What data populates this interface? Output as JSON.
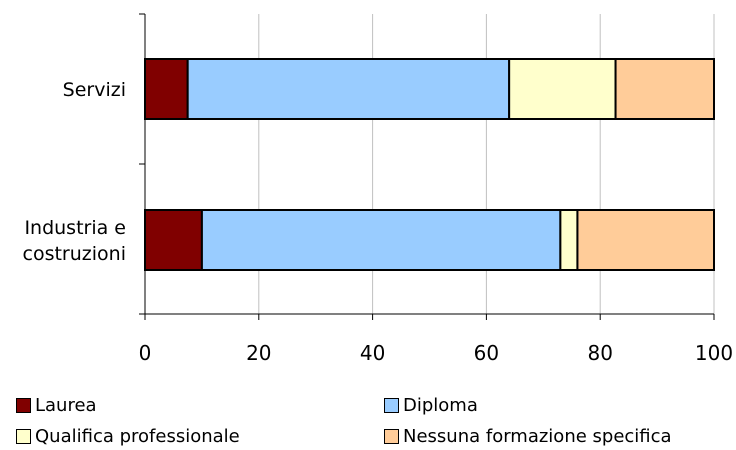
{
  "chart_data": {
    "type": "bar",
    "orientation": "horizontal",
    "stacked": true,
    "categories": [
      "Servizi",
      "Industria e costruzioni"
    ],
    "category_lines": [
      [
        "Servizi"
      ],
      [
        "Industria e",
        "costruzioni"
      ]
    ],
    "series": [
      {
        "name": "Laurea",
        "values": [
          7.5,
          10
        ],
        "color": "#800000"
      },
      {
        "name": "Diploma",
        "values": [
          56.5,
          63
        ],
        "color": "#99ccff"
      },
      {
        "name": "Qualifica professionale",
        "values": [
          18.7,
          3
        ],
        "color": "#ffffcc"
      },
      {
        "name": "Nessuna formazione specifica",
        "values": [
          17.3,
          24
        ],
        "color": "#ffcc99"
      }
    ],
    "xlim": [
      0,
      100
    ],
    "xticks": [
      "0",
      "20",
      "40",
      "60",
      "80",
      "100"
    ],
    "grid": "vertical",
    "legend_position": "bottom",
    "title": "",
    "xlabel": "",
    "ylabel": ""
  }
}
